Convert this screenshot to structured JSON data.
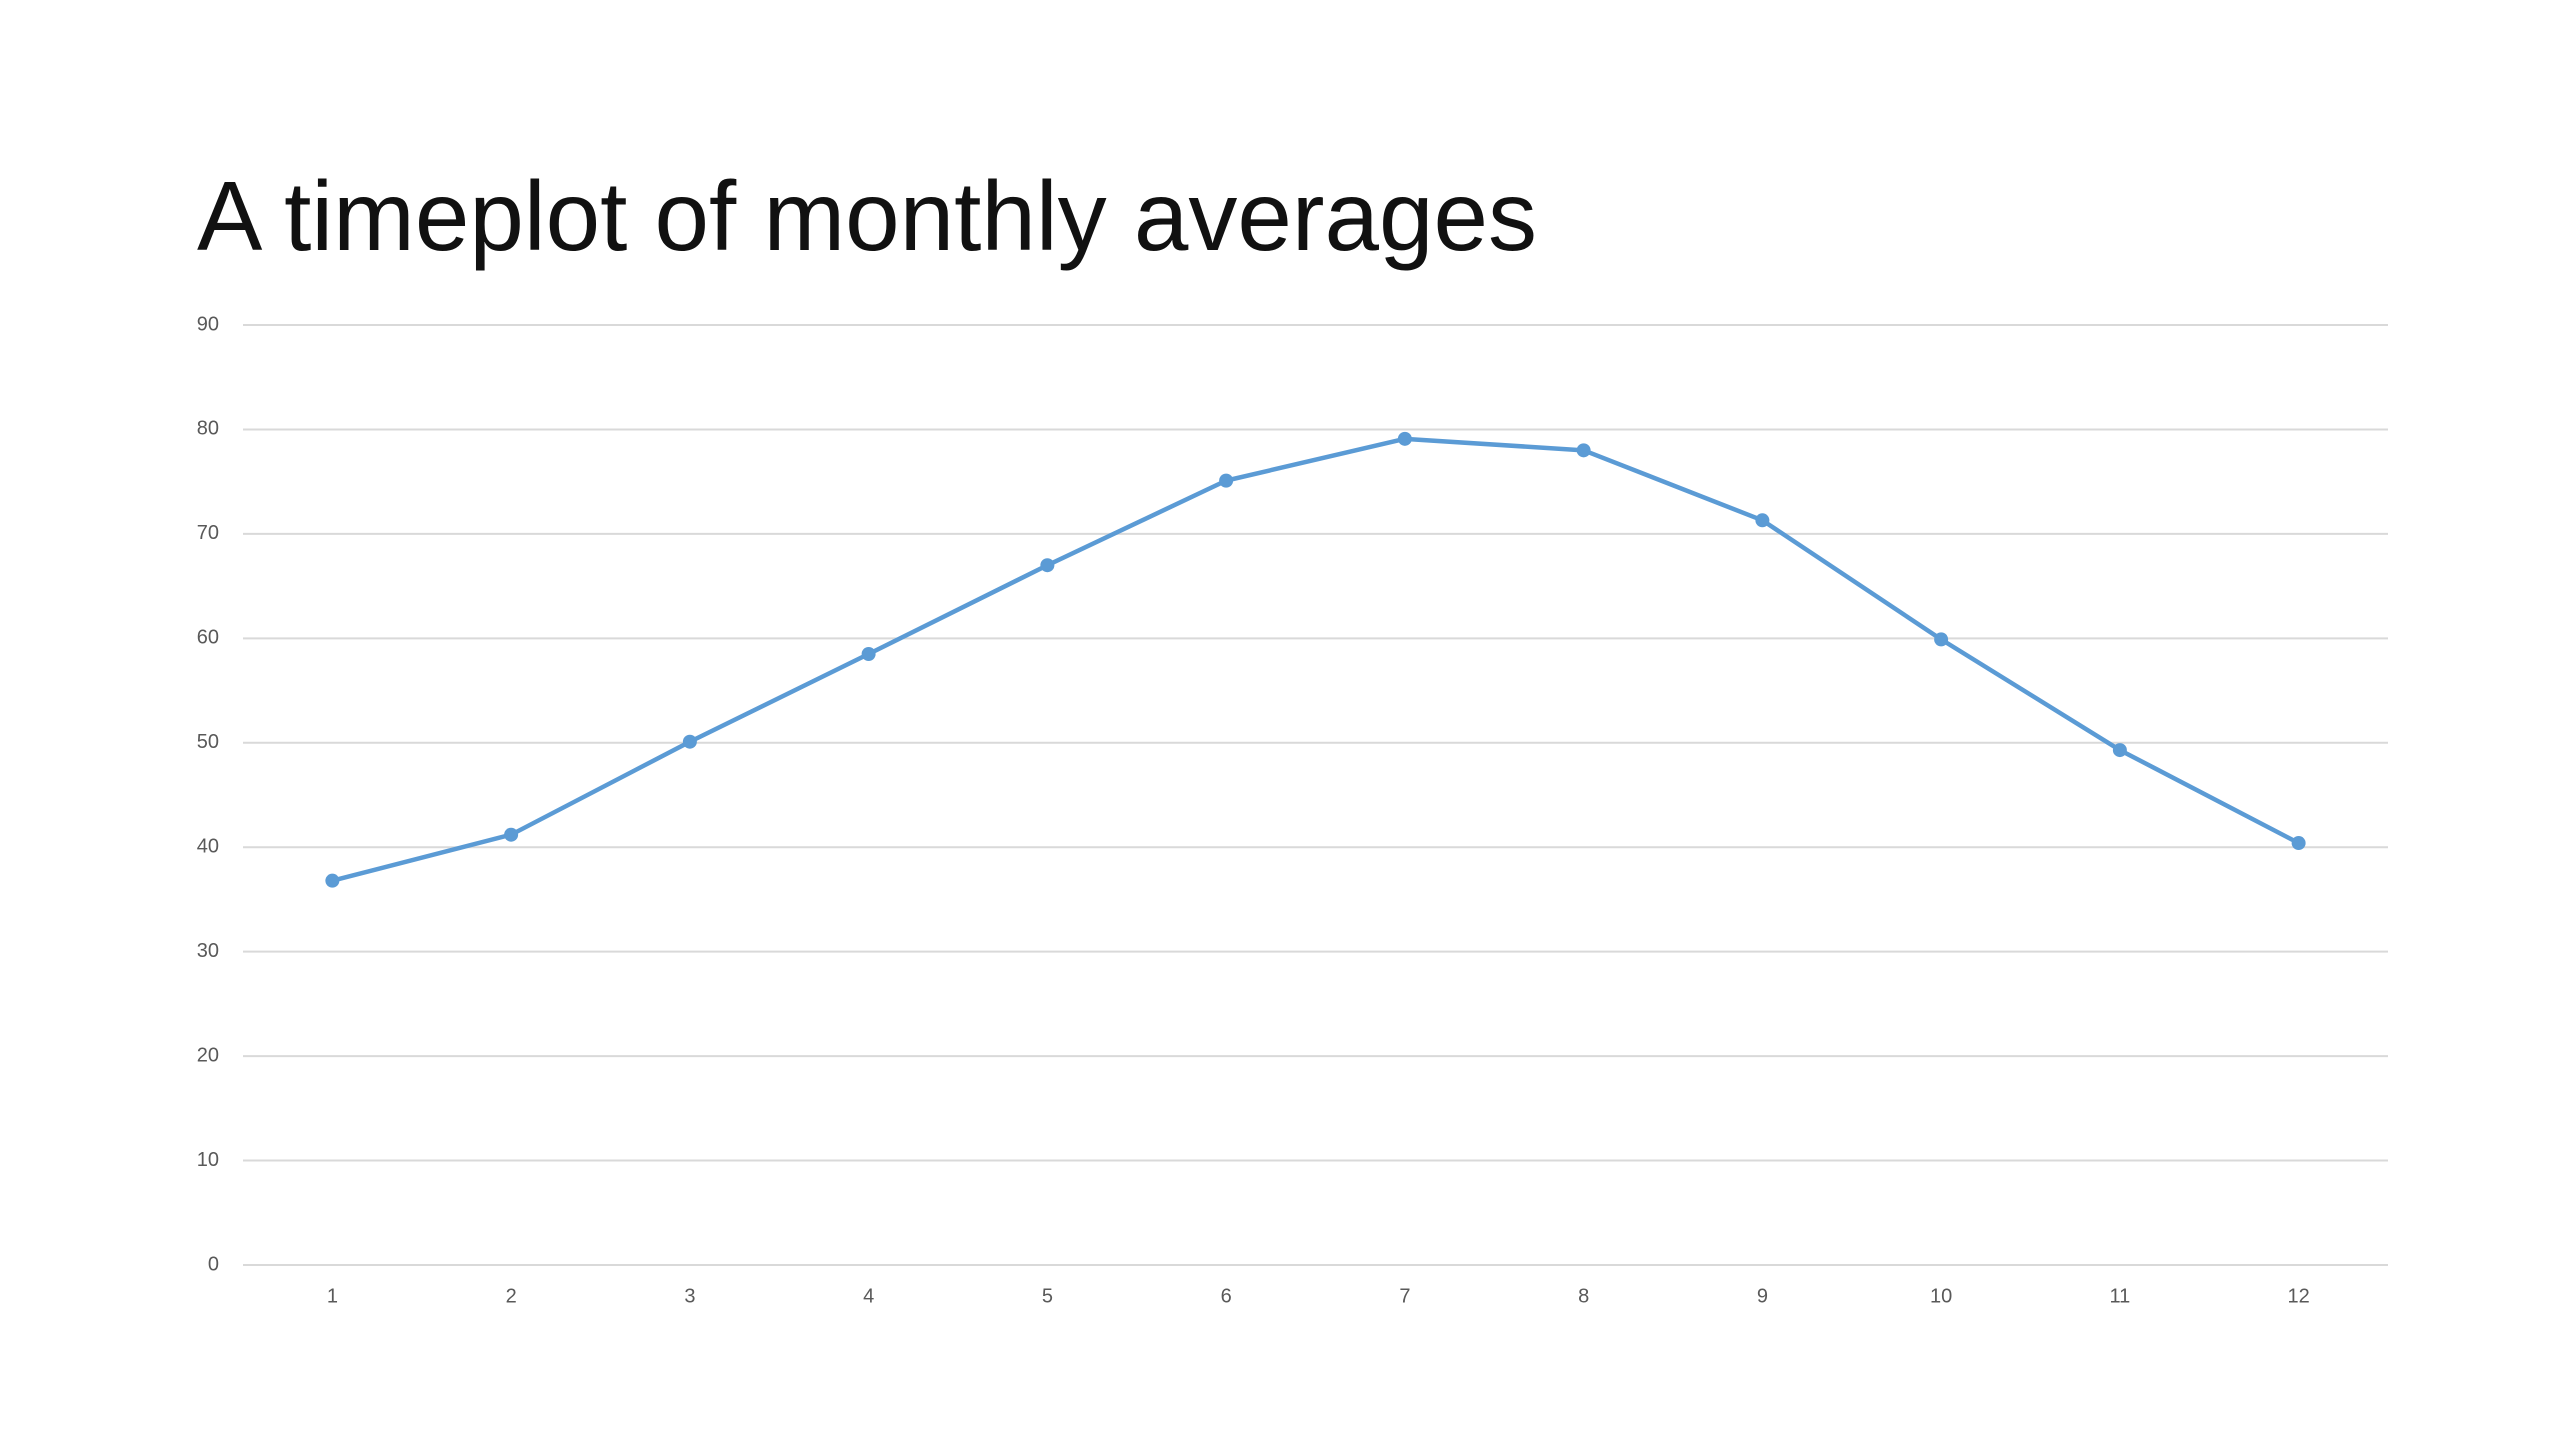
{
  "chart_data": {
    "type": "line",
    "title": "A timeplot of monthly averages",
    "categories": [
      "1",
      "2",
      "3",
      "4",
      "5",
      "6",
      "7",
      "8",
      "9",
      "10",
      "11",
      "12"
    ],
    "series": [
      {
        "color": "#5b9bd5",
        "values": [
          36.8,
          41.2,
          50.1,
          58.5,
          67.0,
          75.1,
          79.1,
          78.0,
          71.3,
          59.9,
          49.3,
          40.4
        ]
      }
    ],
    "ylim": [
      0,
      90
    ],
    "yticks": [
      0,
      10,
      20,
      30,
      40,
      50,
      60,
      70,
      80,
      90
    ],
    "grid": true
  }
}
